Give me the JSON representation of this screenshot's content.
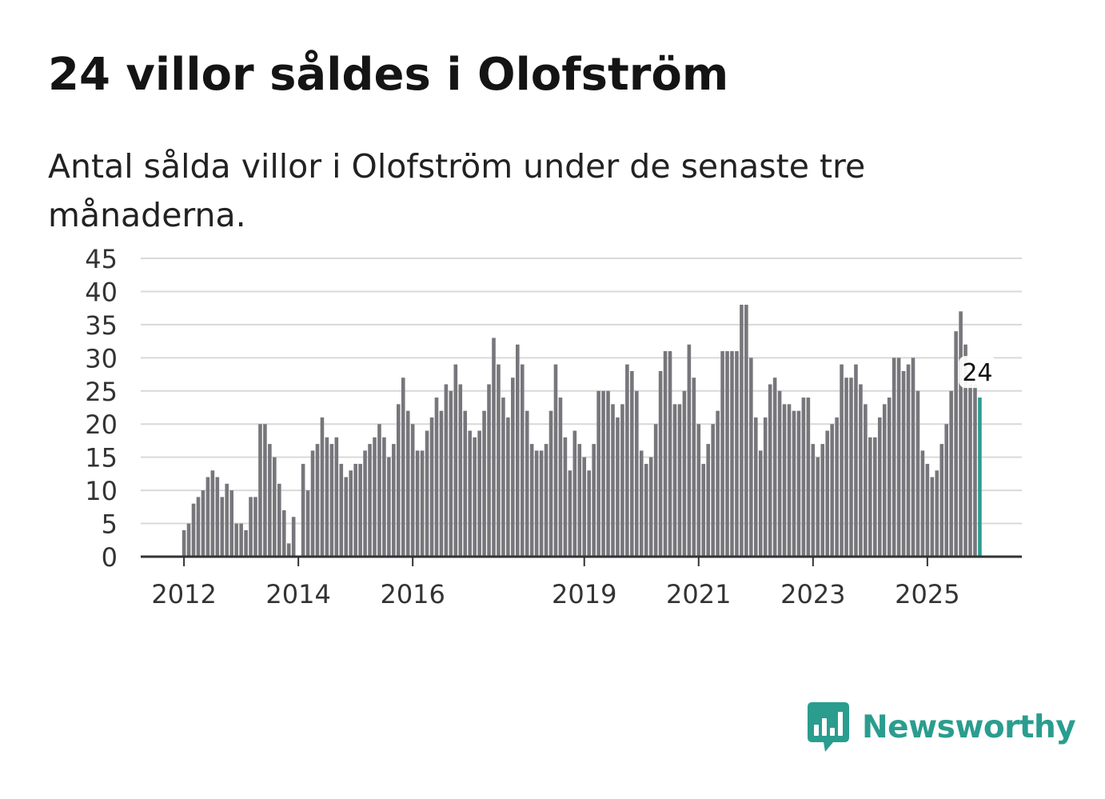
{
  "header": {
    "title": "24 villor såldes i Olofström",
    "subtitle": "Antal sålda villor i Olofström under de senaste tre månaderna."
  },
  "brand": {
    "name": "Newsworthy",
    "logo_icon": "newsworthy-chart-bubble-icon",
    "color": "#2a9d8f"
  },
  "colors": {
    "bar": "#77767b",
    "highlight": "#2a9d8f",
    "grid": "#d9d9d9",
    "axis": "#333333"
  },
  "chart_data": {
    "type": "bar",
    "title": "24 villor såldes i Olofström",
    "subtitle": "Antal sålda villor i Olofström under de senaste tre månaderna.",
    "xlabel": "",
    "ylabel": "",
    "ylim": [
      0,
      45
    ],
    "yticks": [
      "0",
      "5",
      "10",
      "15",
      "20",
      "25",
      "30",
      "35",
      "40",
      "45"
    ],
    "grid": true,
    "x_start_index": 9,
    "xtick_labels": [
      {
        "label": "2012",
        "index": 9
      },
      {
        "label": "2014",
        "index": 33
      },
      {
        "label": "2016",
        "index": 57
      },
      {
        "label": "2019",
        "index": 93
      },
      {
        "label": "2021",
        "index": 117
      },
      {
        "label": "2023",
        "index": 141
      },
      {
        "label": "2025",
        "index": 165
      }
    ],
    "values": [
      4,
      5,
      8,
      9,
      10,
      12,
      13,
      12,
      9,
      11,
      10,
      5,
      5,
      4,
      9,
      9,
      20,
      20,
      17,
      15,
      11,
      7,
      2,
      6,
      0,
      14,
      10,
      16,
      17,
      21,
      18,
      17,
      18,
      14,
      12,
      13,
      14,
      14,
      16,
      17,
      18,
      20,
      18,
      15,
      17,
      23,
      27,
      22,
      20,
      16,
      16,
      19,
      21,
      24,
      22,
      26,
      25,
      29,
      26,
      22,
      19,
      18,
      19,
      22,
      26,
      33,
      29,
      24,
      21,
      27,
      32,
      29,
      22,
      17,
      16,
      16,
      17,
      22,
      29,
      24,
      18,
      13,
      19,
      17,
      15,
      13,
      17,
      25,
      25,
      25,
      23,
      21,
      23,
      29,
      28,
      25,
      16,
      14,
      15,
      20,
      28,
      31,
      31,
      23,
      23,
      25,
      32,
      27,
      20,
      14,
      17,
      20,
      22,
      31,
      31,
      31,
      31,
      38,
      38,
      30,
      21,
      16,
      21,
      26,
      27,
      25,
      23,
      23,
      22,
      22,
      24,
      24,
      17,
      15,
      17,
      19,
      20,
      21,
      29,
      27,
      27,
      29,
      26,
      23,
      18,
      18,
      21,
      23,
      24,
      30,
      30,
      28,
      29,
      30,
      25,
      16,
      14,
      12,
      13,
      17,
      20,
      25,
      34,
      37,
      32,
      26,
      26,
      24
    ],
    "highlight_last": true,
    "annotation": {
      "label": "24",
      "value": 24
    }
  }
}
